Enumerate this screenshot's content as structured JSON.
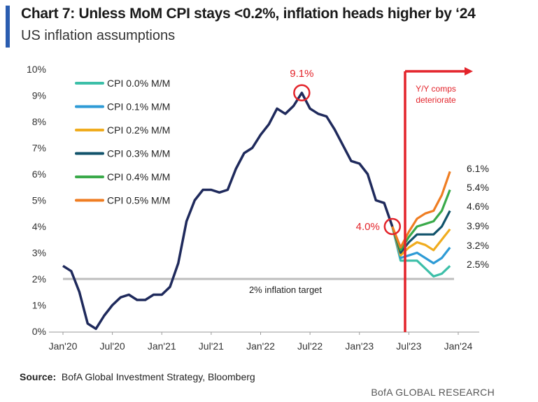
{
  "header": {
    "title": "Chart 7: Unless MoM CPI stays <0.2%, inflation heads higher by ‘24",
    "subtitle": "US inflation assumptions"
  },
  "footer": {
    "source_label": "Source:",
    "source_text": "BofA Global Investment Strategy, Bloomberg",
    "brand": "BofA GLOBAL RESEARCH"
  },
  "chart_data": {
    "type": "line",
    "x_ticks": [
      "Jan'20",
      "Jul'20",
      "Jan'21",
      "Jul'21",
      "Jan'22",
      "Jul'22",
      "Jan'23",
      "Jul'23",
      "Jan'24"
    ],
    "y_ticks": [
      "0%",
      "1%",
      "2%",
      "3%",
      "4%",
      "5%",
      "6%",
      "7%",
      "8%",
      "9%",
      "10%"
    ],
    "ylim": [
      0,
      10
    ],
    "x_start": "2020-01",
    "x_end": "2024-01",
    "grid": false,
    "legend_position": "top-left",
    "history": {
      "color": "#1f2a5c",
      "x": [
        "2020-01",
        "2020-02",
        "2020-03",
        "2020-04",
        "2020-05",
        "2020-06",
        "2020-07",
        "2020-08",
        "2020-09",
        "2020-10",
        "2020-11",
        "2020-12",
        "2021-01",
        "2021-02",
        "2021-03",
        "2021-04",
        "2021-05",
        "2021-06",
        "2021-07",
        "2021-08",
        "2021-09",
        "2021-10",
        "2021-11",
        "2021-12",
        "2022-01",
        "2022-02",
        "2022-03",
        "2022-04",
        "2022-05",
        "2022-06",
        "2022-07",
        "2022-08",
        "2022-09",
        "2022-10",
        "2022-11",
        "2022-12",
        "2023-01",
        "2023-02",
        "2023-03",
        "2023-04",
        "2023-05"
      ],
      "values": [
        2.5,
        2.3,
        1.5,
        0.3,
        0.1,
        0.6,
        1.0,
        1.3,
        1.4,
        1.2,
        1.2,
        1.4,
        1.4,
        1.7,
        2.6,
        4.2,
        5.0,
        5.4,
        5.4,
        5.3,
        5.4,
        6.2,
        6.8,
        7.0,
        7.5,
        7.9,
        8.5,
        8.3,
        8.6,
        9.1,
        8.5,
        8.3,
        8.2,
        7.7,
        7.1,
        6.5,
        6.4,
        6.0,
        5.0,
        4.9,
        4.0
      ]
    },
    "projections_x": [
      "2023-05",
      "2023-06",
      "2023-07",
      "2023-08",
      "2023-09",
      "2023-10",
      "2023-11",
      "2023-12"
    ],
    "series": [
      {
        "name": "CPI 0.0% M/M",
        "color": "#3cbfa8",
        "end_label": "2.5%",
        "values": [
          4.0,
          2.7,
          2.7,
          2.7,
          2.4,
          2.1,
          2.2,
          2.5
        ]
      },
      {
        "name": "CPI 0.1% M/M",
        "color": "#2e9bd6",
        "end_label": "3.2%",
        "values": [
          4.0,
          2.8,
          2.9,
          3.0,
          2.8,
          2.6,
          2.8,
          3.2
        ]
      },
      {
        "name": "CPI 0.2% M/M",
        "color": "#f0ac1e",
        "end_label": "3.9%",
        "values": [
          4.0,
          2.9,
          3.2,
          3.4,
          3.3,
          3.1,
          3.5,
          3.9
        ]
      },
      {
        "name": "CPI 0.3% M/M",
        "color": "#11536b",
        "end_label": "4.6%",
        "values": [
          4.0,
          3.0,
          3.4,
          3.7,
          3.7,
          3.7,
          4.0,
          4.6
        ]
      },
      {
        "name": "CPI 0.4% M/M",
        "color": "#3aaa4a",
        "end_label": "5.4%",
        "values": [
          4.0,
          3.1,
          3.6,
          4.0,
          4.1,
          4.2,
          4.6,
          5.4
        ]
      },
      {
        "name": "CPI 0.5% M/M",
        "color": "#ef7d22",
        "end_label": "6.1%",
        "values": [
          4.0,
          3.2,
          3.8,
          4.3,
          4.5,
          4.6,
          5.2,
          6.1
        ]
      }
    ],
    "target_line": {
      "value": 2.0,
      "label": "2% inflation target",
      "color": "#bdbdbd"
    },
    "annotations": {
      "peak": {
        "label": "9.1%",
        "x": "2022-06",
        "y": 9.1,
        "color": "#e3242b"
      },
      "current": {
        "label": "4.0%",
        "x": "2023-05",
        "y": 4.0,
        "color": "#e3242b"
      },
      "comps": {
        "label_line1": "Y/Y comps",
        "label_line2": "deteriorate",
        "x": "2023-06",
        "color": "#e3242b"
      }
    }
  }
}
